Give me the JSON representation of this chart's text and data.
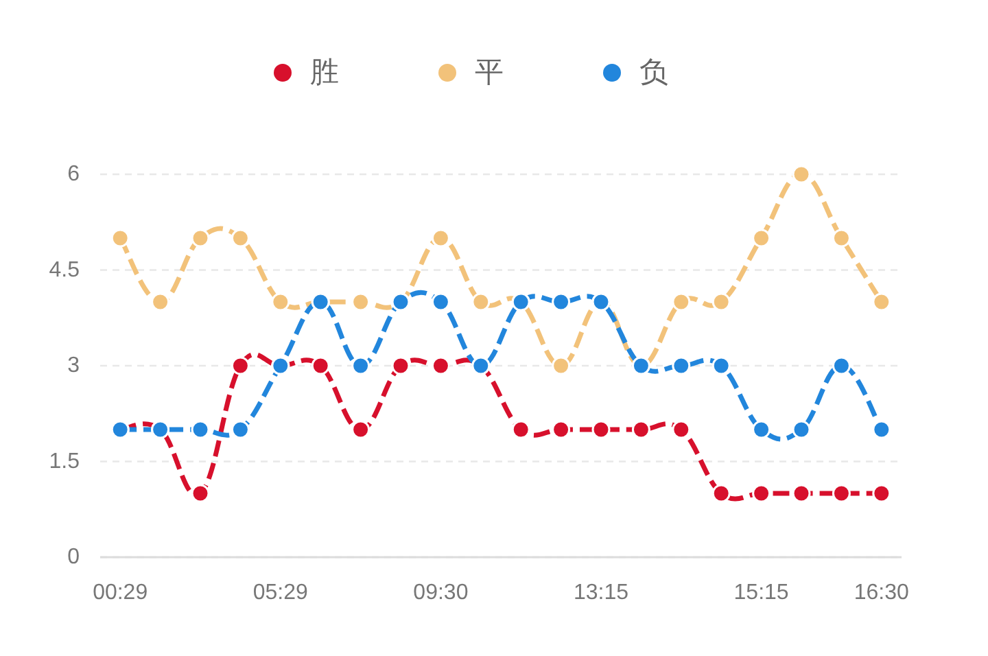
{
  "chart_data": {
    "type": "line",
    "categories": [
      "00:29",
      null,
      null,
      null,
      "05:29",
      null,
      null,
      null,
      "09:30",
      null,
      null,
      null,
      "13:15",
      null,
      null,
      null,
      "15:15",
      null,
      null,
      "16:30"
    ],
    "series": [
      {
        "name": "胜",
        "color": "#d7102c",
        "values": [
          2,
          2,
          1,
          3,
          3,
          3,
          2,
          3,
          3,
          3,
          2,
          2,
          2,
          2,
          2,
          1,
          1,
          1,
          1,
          1
        ]
      },
      {
        "name": "平",
        "color": "#f2c27a",
        "values": [
          5,
          4,
          5,
          5,
          4,
          4,
          4,
          4,
          5,
          4,
          4,
          3,
          4,
          3,
          4,
          4,
          5,
          6,
          5,
          4
        ]
      },
      {
        "name": "负",
        "color": "#2286dc",
        "values": [
          2,
          2,
          2,
          2,
          3,
          4,
          3,
          4,
          4,
          3,
          4,
          4,
          4,
          3,
          3,
          3,
          2,
          2,
          3,
          2
        ]
      }
    ],
    "ylim": [
      0,
      6
    ],
    "yticks": [
      0,
      1.5,
      3,
      4.5,
      6
    ],
    "grid": "y",
    "legend": "top",
    "marker": "circle",
    "line_style": "dashed"
  }
}
